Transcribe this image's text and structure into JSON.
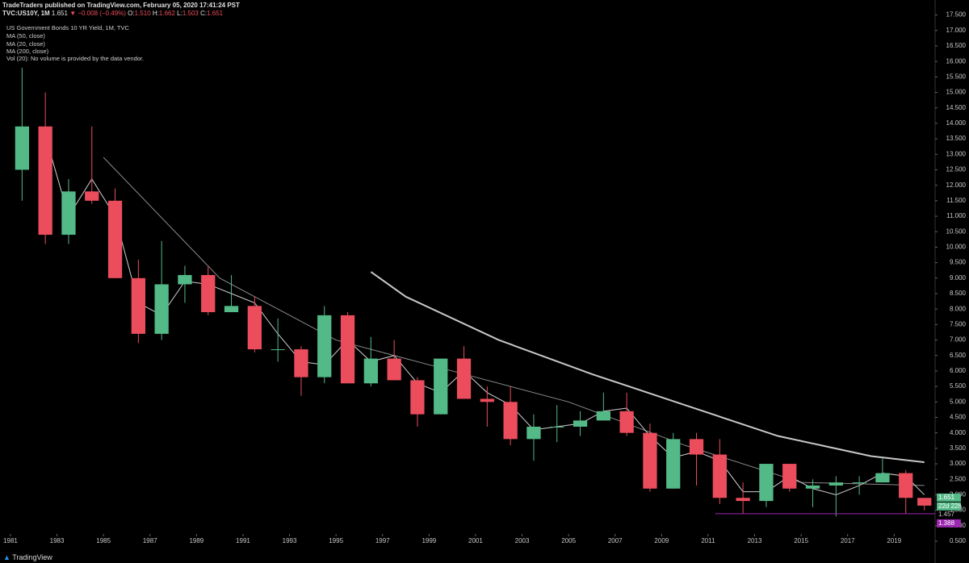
{
  "header": {
    "publisher_line": "TradeTraders published on TradingView.com, February 05, 2020 17:41:24 PST",
    "symbol": "TVC:US10Y, 1M",
    "price": "1.651",
    "change": "▼ −0.008 (−0.49%)",
    "o_label": "O:",
    "o": "1.510",
    "h_label": "H:",
    "h": "1.662",
    "l_label": "L:",
    "l": "1.503",
    "c_label": "C:",
    "c": "1.651"
  },
  "chart_data": {
    "type": "candlestick",
    "title": "US Government Bonds 10 YR Yield, 1M, TVC",
    "note": "Vol (20): No volume is provided by the data vendor.",
    "x": [
      1981.5,
      1982.5,
      1983.5,
      1984.5,
      1985.5,
      1986.5,
      1987.5,
      1988.5,
      1989.5,
      1990.5,
      1991.5,
      1992.5,
      1993.5,
      1994.5,
      1995.5,
      1996.5,
      1997.5,
      1998.5,
      1999.5,
      2000.5,
      2001.5,
      2002.5,
      2003.5,
      2004.5,
      2005.5,
      2006.5,
      2007.5,
      2008.5,
      2009.5,
      2010.5,
      2011.5,
      2012.5,
      2013.5,
      2014.5,
      2015.5,
      2016.5,
      2017.5,
      2018.5,
      2019.5,
      2020.3
    ],
    "open": [
      12.5,
      13.9,
      10.4,
      11.8,
      11.5,
      9.0,
      7.2,
      8.8,
      9.1,
      7.9,
      8.1,
      6.7,
      6.7,
      5.8,
      7.8,
      5.6,
      6.4,
      5.7,
      4.6,
      6.4,
      5.1,
      5.0,
      3.8,
      4.2,
      4.2,
      4.4,
      4.7,
      4.0,
      2.2,
      3.8,
      3.3,
      1.9,
      1.8,
      3.0,
      2.2,
      2.3,
      2.4,
      2.4,
      2.7,
      1.9
    ],
    "high": [
      15.8,
      15.0,
      12.2,
      13.9,
      11.9,
      9.6,
      10.2,
      9.4,
      9.4,
      9.1,
      8.4,
      7.7,
      6.8,
      8.1,
      7.9,
      7.1,
      7.0,
      5.8,
      6.4,
      6.8,
      5.5,
      5.5,
      4.6,
      4.9,
      4.7,
      5.3,
      5.3,
      4.3,
      4.0,
      4.0,
      3.8,
      2.4,
      3.0,
      3.0,
      2.5,
      2.6,
      2.6,
      3.2,
      2.8,
      1.9
    ],
    "low": [
      11.5,
      10.1,
      10.1,
      11.4,
      9.0,
      6.9,
      7.0,
      8.2,
      7.8,
      7.9,
      6.6,
      6.3,
      5.2,
      5.6,
      5.6,
      5.5,
      5.7,
      4.2,
      4.6,
      5.1,
      4.2,
      3.6,
      3.1,
      3.7,
      3.9,
      4.4,
      3.9,
      2.1,
      2.2,
      2.3,
      1.7,
      1.4,
      1.6,
      2.1,
      1.6,
      1.3,
      2.0,
      2.4,
      1.4,
      1.5
    ],
    "close": [
      13.9,
      10.4,
      11.8,
      11.5,
      9.0,
      7.2,
      8.8,
      9.1,
      7.9,
      8.1,
      6.7,
      6.7,
      5.8,
      7.8,
      5.6,
      6.4,
      5.7,
      4.6,
      6.4,
      5.1,
      5.0,
      3.8,
      4.2,
      4.2,
      4.4,
      4.7,
      4.0,
      2.2,
      3.8,
      3.3,
      1.9,
      1.8,
      3.0,
      2.2,
      2.3,
      2.4,
      2.4,
      2.7,
      1.9,
      1.65
    ],
    "up_color": "#53b987",
    "down_color": "#eb4d5c",
    "series": [
      {
        "name": "MA (50, close)",
        "color": "#8a8a8a",
        "x": [
          1985,
          1990,
          1995,
          2000,
          2005,
          2010,
          2015,
          2020.3
        ],
        "values": [
          12.9,
          9.0,
          7.0,
          6.0,
          5.0,
          3.6,
          2.4,
          2.3
        ]
      },
      {
        "name": "MA (20, close)",
        "color": "#d0d0d0",
        "x": [
          1982.5,
          1983.5,
          1984.5,
          1985.5,
          1986.5,
          1987.5,
          1988.5,
          1989.5,
          1990.5,
          1991.5,
          1992.5,
          1993.5,
          1994.5,
          1995.5,
          1996.5,
          1997.5,
          1998.5,
          1999.5,
          2000.5,
          2001.5,
          2002.5,
          2003.5,
          2004.5,
          2005.5,
          2006.5,
          2007.5,
          2008.5,
          2009.5,
          2010.5,
          2011.5,
          2012.5,
          2013.5,
          2014.5,
          2015.5,
          2016.5,
          2017.5,
          2018.5,
          2019.5,
          2020.3
        ],
        "values": [
          13.6,
          11.0,
          12.2,
          11.0,
          8.2,
          7.8,
          8.9,
          8.8,
          8.5,
          8.2,
          7.2,
          6.3,
          6.2,
          7.0,
          6.3,
          6.5,
          5.6,
          5.3,
          6.0,
          5.3,
          4.9,
          4.1,
          4.2,
          4.3,
          4.7,
          4.8,
          3.9,
          3.2,
          3.4,
          3.1,
          2.1,
          2.1,
          2.6,
          2.2,
          2.0,
          2.3,
          2.7,
          2.6,
          2.0
        ]
      },
      {
        "name": "MA (200, close)",
        "color": "#c8c8c8",
        "x": [
          1996.5,
          1998,
          2002,
          2006,
          2010,
          2014,
          2018,
          2020.3
        ],
        "values": [
          9.2,
          8.4,
          7.0,
          5.9,
          4.9,
          3.9,
          3.25,
          3.05
        ]
      }
    ],
    "last_price": 1.651,
    "countdown": "22d 22h",
    "level": 1.457,
    "support": 1.388,
    "support_color": "#9c27b0",
    "xlim": [
      1980.55,
      2020.76
    ],
    "xticks": [
      1981,
      1983,
      1985,
      1987,
      1989,
      1991,
      1993,
      1995,
      1997,
      1999,
      2001,
      2003,
      2005,
      2007,
      2009,
      2011,
      2013,
      2015,
      2017,
      2019
    ],
    "ylim": [
      0.5,
      17.75
    ],
    "yticks": [
      {
        "value": 0.5,
        "label": "0.500"
      },
      {
        "value": 1,
        "label": "1.000"
      },
      {
        "value": 1.5,
        "label": "1.500"
      },
      {
        "value": 2,
        "label": "2.000"
      },
      {
        "value": 2.5,
        "label": "2.500"
      },
      {
        "value": 3,
        "label": "3.000"
      },
      {
        "value": 3.5,
        "label": "3.500"
      },
      {
        "value": 4,
        "label": "4.000"
      },
      {
        "value": 4.5,
        "label": "4.500"
      },
      {
        "value": 5,
        "label": "5.000"
      },
      {
        "value": 5.5,
        "label": "5.500"
      },
      {
        "value": 6,
        "label": "6.000"
      },
      {
        "value": 6.5,
        "label": "6.500"
      },
      {
        "value": 7,
        "label": "7.000"
      },
      {
        "value": 7.5,
        "label": "7.500"
      },
      {
        "value": 8,
        "label": "8.000"
      },
      {
        "value": 8.5,
        "label": "8.500"
      },
      {
        "value": 9,
        "label": "9.000"
      },
      {
        "value": 9.5,
        "label": "9.500"
      },
      {
        "value": 10,
        "label": "10.000"
      },
      {
        "value": 10.5,
        "label": "10.500"
      },
      {
        "value": 11,
        "label": "11.000"
      },
      {
        "value": 11.5,
        "label": "11.500"
      },
      {
        "value": 12,
        "label": "12.000"
      },
      {
        "value": 12.5,
        "label": "12.500"
      },
      {
        "value": 13,
        "label": "13.000"
      },
      {
        "value": 13.5,
        "label": "13.500"
      },
      {
        "value": 14,
        "label": "14.000"
      },
      {
        "value": 14.5,
        "label": "14.500"
      },
      {
        "value": 15,
        "label": "15.000"
      },
      {
        "value": 15.5,
        "label": "15.500"
      },
      {
        "value": 16,
        "label": "16.000"
      },
      {
        "value": 16.5,
        "label": "16.500"
      },
      {
        "value": 17,
        "label": "17.000"
      },
      {
        "value": 17.5,
        "label": "17.500"
      }
    ]
  },
  "footer": {
    "brand": "TradingView"
  }
}
